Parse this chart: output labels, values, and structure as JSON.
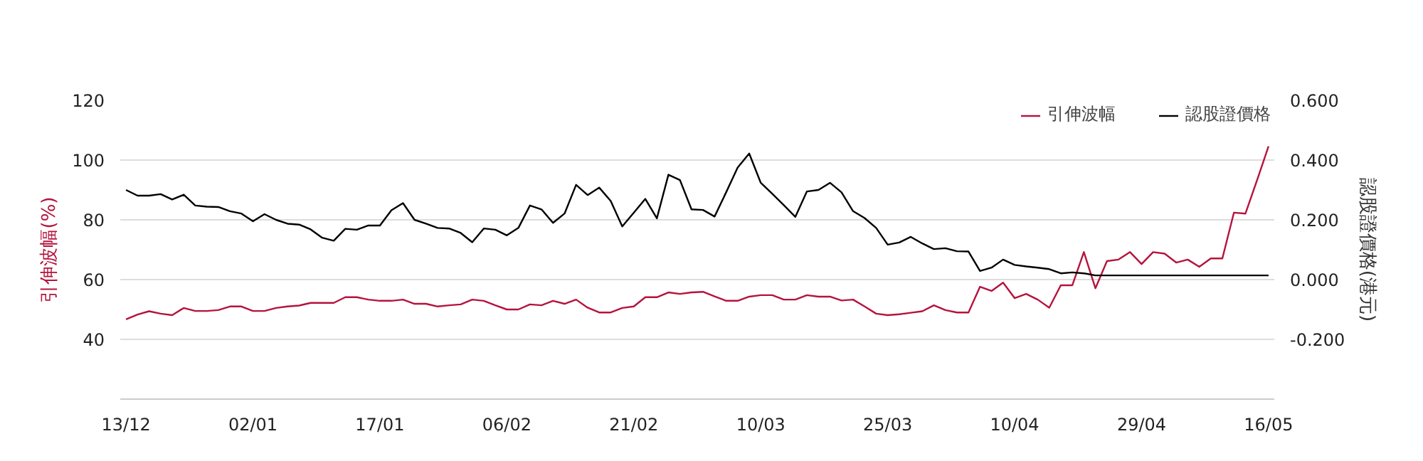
{
  "chart_data": {
    "type": "line",
    "ylabel": "引伸波幅(%)",
    "y2label": "認股證價格(港元)",
    "categories": [
      "13/12",
      null,
      null,
      null,
      null,
      null,
      null,
      null,
      null,
      null,
      null,
      "02/01",
      null,
      null,
      null,
      null,
      null,
      null,
      null,
      null,
      null,
      null,
      "17/01",
      null,
      null,
      null,
      null,
      null,
      null,
      null,
      null,
      null,
      null,
      "06/02",
      null,
      null,
      null,
      null,
      null,
      null,
      null,
      null,
      null,
      null,
      "21/02",
      null,
      null,
      null,
      null,
      null,
      null,
      null,
      null,
      null,
      null,
      "10/03",
      null,
      null,
      null,
      null,
      null,
      null,
      null,
      null,
      null,
      null,
      "25/03",
      null,
      null,
      null,
      null,
      null,
      null,
      null,
      null,
      null,
      null,
      "10/04",
      null,
      null,
      null,
      null,
      null,
      null,
      null,
      null,
      null,
      null,
      "29/04",
      null,
      null,
      null,
      null,
      null,
      null,
      null,
      null,
      null,
      null,
      "16/05"
    ],
    "series": [
      {
        "name": "引伸波幅",
        "color": "#b5133c",
        "values": [
          46.7,
          48.3,
          49.4,
          48.6,
          48.1,
          50.5,
          49.5,
          49.5,
          49.8,
          51.0,
          51.0,
          49.5,
          49.5,
          50.5,
          51.0,
          51.3,
          52.2,
          52.2,
          52.2,
          54.1,
          54.1,
          53.3,
          52.9,
          52.9,
          53.3,
          51.9,
          51.9,
          51.0,
          51.4,
          51.7,
          53.3,
          52.9,
          51.4,
          50.0,
          50.0,
          51.7,
          51.4,
          52.9,
          51.9,
          53.3,
          50.6,
          49.0,
          49.0,
          50.5,
          51.0,
          54.1,
          54.1,
          55.7,
          55.2,
          55.7,
          55.9,
          54.4,
          52.9,
          52.9,
          54.3,
          54.8,
          54.8,
          53.3,
          53.3,
          54.8,
          54.3,
          54.3,
          53.0,
          53.3,
          51.0,
          48.6,
          48.1,
          48.4,
          48.9,
          49.4,
          51.4,
          49.8,
          49.0,
          49.0,
          57.6,
          56.2,
          59.0,
          53.8,
          55.2,
          53.3,
          50.6,
          58.1,
          58.1,
          69.2,
          57.1,
          66.2,
          66.7,
          69.2,
          65.2,
          69.2,
          68.7,
          65.7,
          66.7,
          64.3,
          67.1,
          67.1,
          82.4,
          82.1,
          93.2,
          104.6
        ]
      },
      {
        "name": "認股證價格",
        "color": "#000000",
        "axis": "y2",
        "values": [
          0.3,
          0.281,
          0.281,
          0.286,
          0.268,
          0.284,
          0.248,
          0.244,
          0.243,
          0.229,
          0.221,
          0.195,
          0.219,
          0.2,
          0.187,
          0.184,
          0.168,
          0.14,
          0.13,
          0.17,
          0.167,
          0.181,
          0.181,
          0.232,
          0.256,
          0.2,
          0.187,
          0.173,
          0.171,
          0.156,
          0.125,
          0.171,
          0.167,
          0.148,
          0.173,
          0.248,
          0.235,
          0.19,
          0.221,
          0.317,
          0.283,
          0.308,
          0.263,
          0.178,
          0.224,
          0.27,
          0.205,
          0.351,
          0.333,
          0.235,
          0.233,
          0.211,
          0.292,
          0.375,
          0.422,
          0.324,
          0.287,
          0.249,
          0.21,
          0.295,
          0.3,
          0.324,
          0.292,
          0.229,
          0.206,
          0.173,
          0.117,
          0.124,
          0.143,
          0.121,
          0.102,
          0.105,
          0.095,
          0.094,
          0.029,
          0.04,
          0.067,
          0.049,
          0.044,
          0.04,
          0.035,
          0.021,
          0.024,
          0.021,
          0.014,
          0.014,
          0.014,
          0.014,
          0.014,
          0.014,
          0.014,
          0.014,
          0.014,
          0.014,
          0.014,
          0.014,
          0.014,
          0.014,
          0.014,
          0.014
        ]
      }
    ],
    "ylim": [
      20,
      120
    ],
    "yticks": [
      40,
      60,
      80,
      100,
      120
    ],
    "y2lim": [
      -0.4,
      0.6
    ],
    "y2ticks": [
      {
        "value": -0.2,
        "label": "-0.200"
      },
      {
        "value": 0,
        "label": "0.000"
      },
      {
        "value": 0.2,
        "label": "0.200"
      },
      {
        "value": 0.4,
        "label": "0.400"
      },
      {
        "value": 0.6,
        "label": "0.600"
      }
    ],
    "grid": "y",
    "legend": "top right",
    "marker": "none",
    "line_style": "solid"
  }
}
